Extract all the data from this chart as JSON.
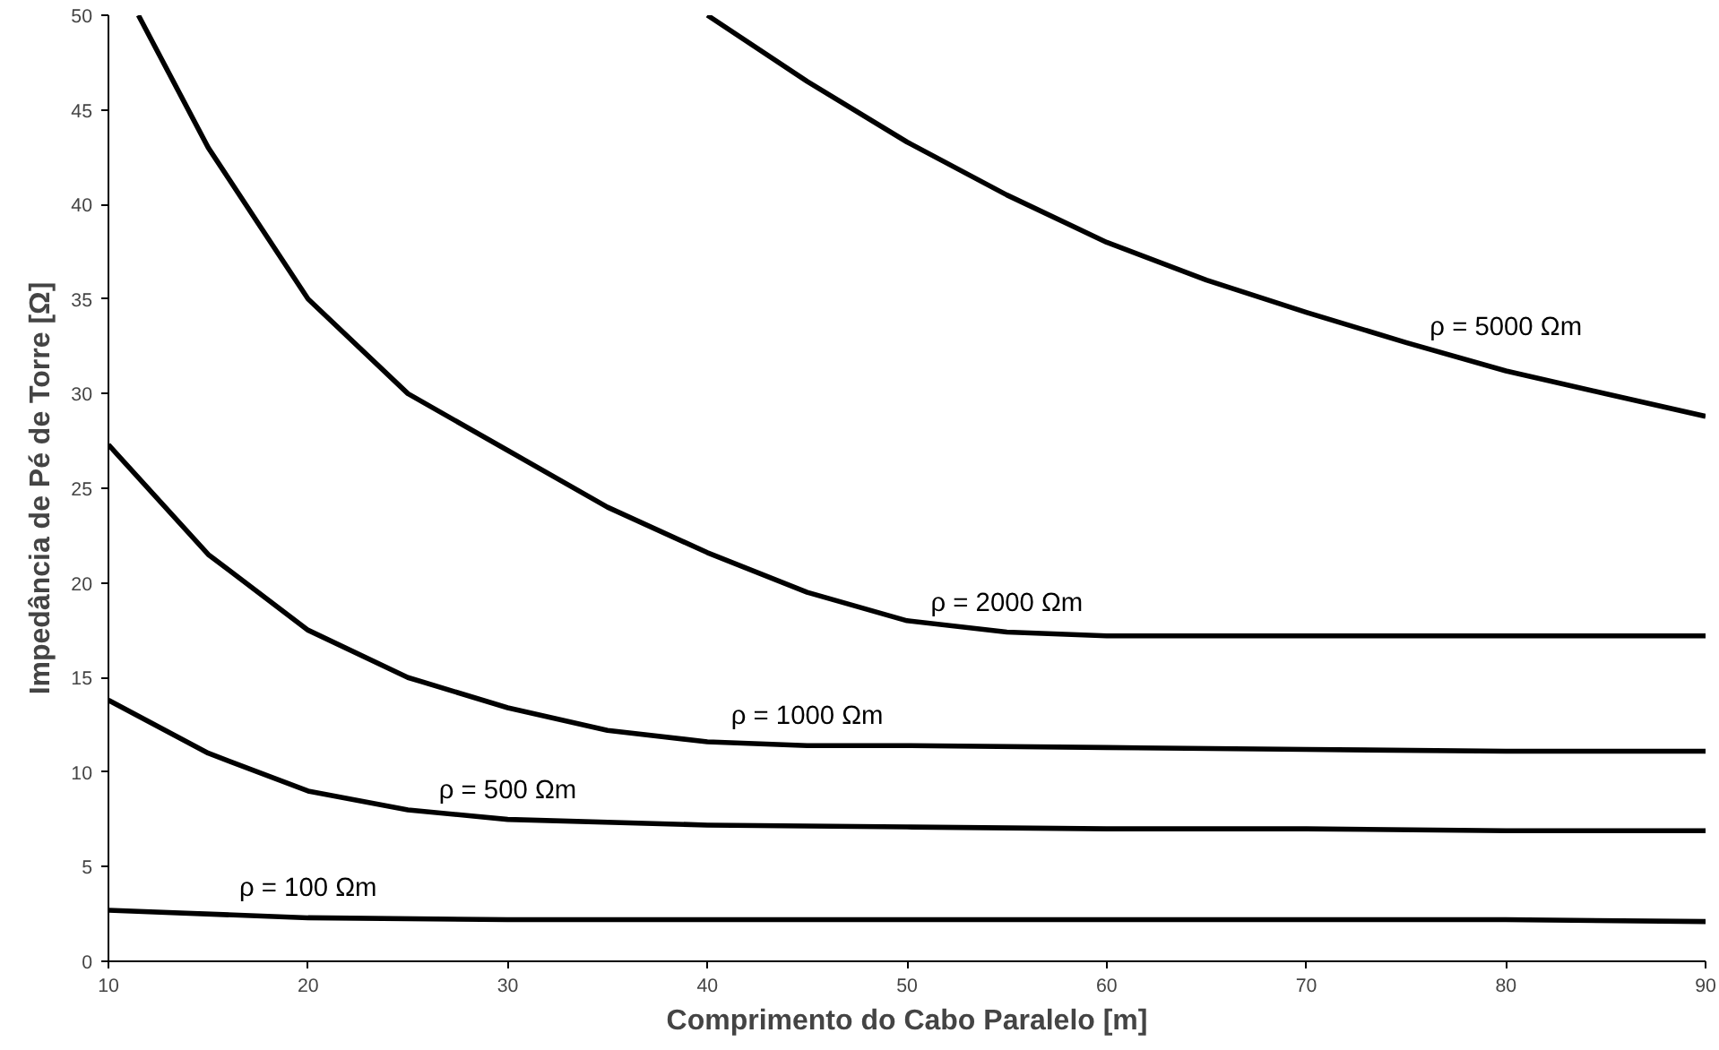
{
  "chart_data": {
    "type": "line",
    "xlabel": "Comprimento do Cabo Paralelo [m]",
    "ylabel": "Impedância de Pé de Torre [Ω]",
    "xlim": [
      10,
      90
    ],
    "xticks": [
      10,
      20,
      30,
      40,
      50,
      60,
      70,
      80,
      90
    ],
    "ylim": [
      0,
      50
    ],
    "yticks": [
      0,
      5,
      10,
      15,
      20,
      25,
      30,
      35,
      40,
      45,
      50
    ],
    "grid": false,
    "legend": false,
    "marker": "none",
    "line_style": "solid",
    "series": [
      {
        "name": "ρ = 5000 Ωm",
        "color": "#000000",
        "x": [
          40,
          45,
          50,
          55,
          60,
          65,
          70,
          75,
          80,
          85,
          90
        ],
        "values": [
          50,
          46.5,
          43.3,
          40.5,
          38,
          36,
          34.3,
          32.7,
          31.2,
          30,
          28.8
        ]
      },
      {
        "name": "ρ = 2000 Ωm",
        "color": "#000000",
        "x": [
          11.5,
          15,
          20,
          25,
          30,
          35,
          40,
          45,
          50,
          55,
          60,
          70,
          80,
          90
        ],
        "values": [
          50,
          43,
          35,
          30,
          27,
          24,
          21.6,
          19.5,
          18,
          17.4,
          17.2,
          17.2,
          17.2,
          17.2
        ]
      },
      {
        "name": "ρ = 1000 Ωm",
        "color": "#000000",
        "x": [
          10,
          15,
          20,
          25,
          30,
          35,
          40,
          45,
          50,
          60,
          70,
          80,
          90
        ],
        "values": [
          27.3,
          21.5,
          17.5,
          15,
          13.4,
          12.2,
          11.6,
          11.4,
          11.4,
          11.3,
          11.2,
          11.1,
          11.1
        ]
      },
      {
        "name": "ρ = 500 Ωm",
        "color": "#000000",
        "x": [
          10,
          15,
          20,
          25,
          30,
          40,
          50,
          60,
          70,
          80,
          90
        ],
        "values": [
          13.8,
          11,
          9,
          8,
          7.5,
          7.2,
          7.1,
          7.0,
          7.0,
          6.9,
          6.9
        ]
      },
      {
        "name": "ρ = 100 Ωm",
        "color": "#000000",
        "x": [
          10,
          20,
          30,
          40,
          50,
          60,
          70,
          80,
          90
        ],
        "values": [
          2.7,
          2.3,
          2.2,
          2.2,
          2.2,
          2.2,
          2.2,
          2.2,
          2.1
        ]
      }
    ]
  }
}
